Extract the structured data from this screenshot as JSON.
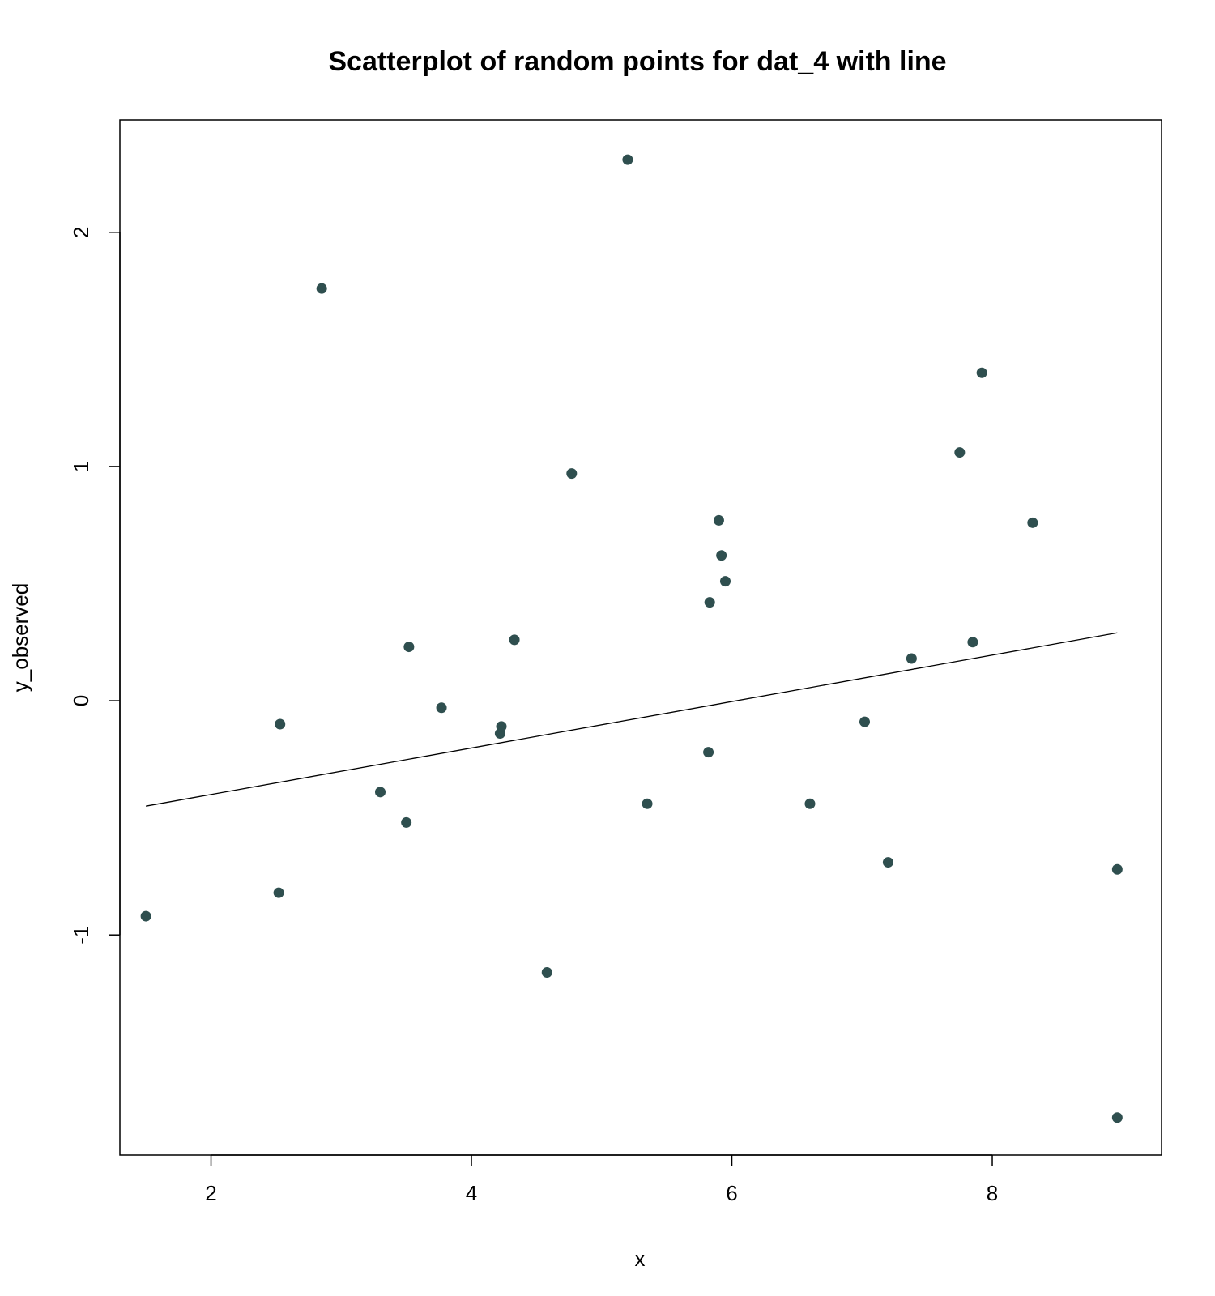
{
  "chart_data": {
    "type": "scatter",
    "title": "Scatterplot of random points for dat_4 with line",
    "xlabel": "x",
    "ylabel": "y_observed",
    "xlim": [
      1.3,
      9.3
    ],
    "ylim": [
      -1.94,
      2.48
    ],
    "xticks": [
      2,
      4,
      6,
      8
    ],
    "xtick_labels": [
      "2",
      "4",
      "6",
      "8"
    ],
    "yticks": [
      -1,
      0,
      1,
      2
    ],
    "ytick_labels": [
      "-1",
      "0",
      "1",
      "2"
    ],
    "grid": false,
    "point_color": "#2f4f4f",
    "line_color": "#000000",
    "series": [
      {
        "type": "scatter",
        "points": [
          [
            1.5,
            -0.92
          ],
          [
            2.52,
            -0.82
          ],
          [
            2.53,
            -0.1
          ],
          [
            2.85,
            1.76
          ],
          [
            3.3,
            -0.39
          ],
          [
            3.5,
            -0.52
          ],
          [
            3.52,
            0.23
          ],
          [
            3.77,
            -0.03
          ],
          [
            4.22,
            -0.14
          ],
          [
            4.23,
            -0.11
          ],
          [
            4.33,
            0.26
          ],
          [
            4.58,
            -1.16
          ],
          [
            4.77,
            0.97
          ],
          [
            5.2,
            2.31
          ],
          [
            5.35,
            -0.44
          ],
          [
            5.82,
            -0.22
          ],
          [
            5.83,
            0.42
          ],
          [
            5.9,
            0.77
          ],
          [
            5.92,
            0.62
          ],
          [
            5.95,
            0.51
          ],
          [
            6.6,
            -0.44
          ],
          [
            7.02,
            -0.09
          ],
          [
            7.2,
            -0.69
          ],
          [
            7.38,
            0.18
          ],
          [
            7.75,
            1.06
          ],
          [
            7.85,
            0.25
          ],
          [
            7.92,
            1.4
          ],
          [
            8.31,
            0.76
          ],
          [
            8.96,
            -0.72
          ],
          [
            8.96,
            -1.78
          ]
        ]
      },
      {
        "type": "line",
        "points": [
          [
            1.5,
            -0.45
          ],
          [
            8.96,
            0.29
          ]
        ]
      }
    ]
  }
}
